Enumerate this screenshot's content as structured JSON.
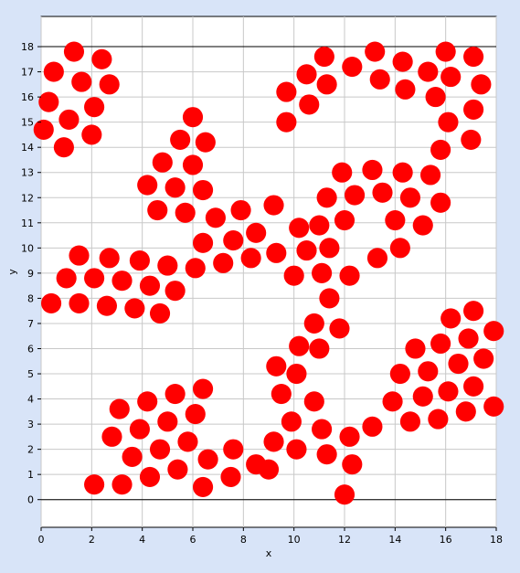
{
  "chart_data": {
    "type": "scatter",
    "title": "",
    "xlabel": "x",
    "ylabel": "y",
    "xlim": [
      0,
      18
    ],
    "ylim": [
      -1.1,
      19.2
    ],
    "xticks": [
      0,
      2,
      4,
      6,
      8,
      10,
      12,
      14,
      16,
      18
    ],
    "yticks": [
      0,
      1,
      2,
      3,
      4,
      5,
      6,
      7,
      8,
      9,
      10,
      11,
      12,
      13,
      14,
      15,
      16,
      17,
      18
    ],
    "grid": true,
    "reference_lines_y": [
      0,
      18
    ],
    "legend": "none",
    "marker_radius": 0.4,
    "marker_color": "#ff0000",
    "series": [
      {
        "points": [
          [
            1.3,
            17.8
          ],
          [
            2.4,
            17.5
          ],
          [
            0.5,
            17.0
          ],
          [
            1.6,
            16.6
          ],
          [
            2.7,
            16.5
          ],
          [
            0.3,
            15.8
          ],
          [
            2.1,
            15.6
          ],
          [
            1.1,
            15.1
          ],
          [
            0.1,
            14.7
          ],
          [
            2.0,
            14.5
          ],
          [
            0.9,
            14.0
          ],
          [
            9.7,
            16.2
          ],
          [
            10.5,
            16.9
          ],
          [
            11.2,
            17.6
          ],
          [
            12.3,
            17.2
          ],
          [
            13.2,
            17.8
          ],
          [
            11.3,
            16.5
          ],
          [
            10.6,
            15.7
          ],
          [
            9.7,
            15.0
          ],
          [
            13.4,
            16.7
          ],
          [
            14.3,
            17.4
          ],
          [
            14.4,
            16.3
          ],
          [
            15.3,
            17.0
          ],
          [
            15.6,
            16.0
          ],
          [
            16.0,
            17.8
          ],
          [
            16.2,
            16.8
          ],
          [
            17.1,
            17.6
          ],
          [
            17.4,
            16.5
          ],
          [
            16.1,
            15.0
          ],
          [
            17.1,
            15.5
          ],
          [
            15.8,
            13.9
          ],
          [
            17.0,
            14.3
          ],
          [
            6.0,
            15.2
          ],
          [
            5.5,
            14.3
          ],
          [
            6.5,
            14.2
          ],
          [
            4.8,
            13.4
          ],
          [
            6.0,
            13.3
          ],
          [
            4.2,
            12.5
          ],
          [
            5.3,
            12.4
          ],
          [
            6.4,
            12.3
          ],
          [
            4.6,
            11.5
          ],
          [
            5.7,
            11.4
          ],
          [
            6.9,
            11.2
          ],
          [
            6.4,
            10.2
          ],
          [
            7.6,
            10.3
          ],
          [
            7.9,
            11.5
          ],
          [
            8.5,
            10.6
          ],
          [
            9.2,
            11.7
          ],
          [
            6.1,
            9.2
          ],
          [
            7.2,
            9.4
          ],
          [
            8.3,
            9.6
          ],
          [
            9.3,
            9.8
          ],
          [
            10.2,
            10.8
          ],
          [
            10.5,
            9.9
          ],
          [
            11.0,
            10.9
          ],
          [
            11.4,
            10.0
          ],
          [
            11.1,
            9.0
          ],
          [
            12.0,
            11.1
          ],
          [
            12.2,
            8.9
          ],
          [
            11.4,
            8.0
          ],
          [
            10.0,
            8.9
          ],
          [
            11.3,
            12.0
          ],
          [
            11.9,
            13.0
          ],
          [
            12.4,
            12.1
          ],
          [
            13.1,
            13.1
          ],
          [
            13.5,
            12.2
          ],
          [
            14.3,
            13.0
          ],
          [
            14.0,
            11.1
          ],
          [
            14.6,
            12.0
          ],
          [
            15.1,
            10.9
          ],
          [
            15.4,
            12.9
          ],
          [
            15.8,
            11.8
          ],
          [
            14.2,
            10.0
          ],
          [
            13.3,
            9.6
          ],
          [
            0.4,
            7.8
          ],
          [
            1.0,
            8.8
          ],
          [
            1.5,
            9.7
          ],
          [
            1.5,
            7.8
          ],
          [
            2.1,
            8.8
          ],
          [
            2.6,
            7.7
          ],
          [
            2.7,
            9.6
          ],
          [
            3.2,
            8.7
          ],
          [
            3.7,
            7.6
          ],
          [
            3.9,
            9.5
          ],
          [
            4.3,
            8.5
          ],
          [
            4.7,
            7.4
          ],
          [
            5.0,
            9.3
          ],
          [
            5.3,
            8.3
          ],
          [
            11.8,
            6.8
          ],
          [
            11.0,
            6.0
          ],
          [
            10.8,
            7.0
          ],
          [
            10.2,
            6.1
          ],
          [
            9.3,
            5.3
          ],
          [
            10.1,
            5.0
          ],
          [
            9.5,
            4.2
          ],
          [
            10.8,
            3.9
          ],
          [
            9.9,
            3.1
          ],
          [
            11.1,
            2.8
          ],
          [
            10.1,
            2.0
          ],
          [
            9.2,
            2.3
          ],
          [
            9.0,
            1.2
          ],
          [
            11.3,
            1.8
          ],
          [
            12.2,
            2.5
          ],
          [
            12.3,
            1.4
          ],
          [
            12.0,
            0.2
          ],
          [
            3.1,
            3.6
          ],
          [
            4.2,
            3.9
          ],
          [
            5.3,
            4.2
          ],
          [
            6.4,
            4.4
          ],
          [
            2.8,
            2.5
          ],
          [
            3.9,
            2.8
          ],
          [
            5.0,
            3.1
          ],
          [
            6.1,
            3.4
          ],
          [
            3.6,
            1.7
          ],
          [
            4.7,
            2.0
          ],
          [
            5.8,
            2.3
          ],
          [
            6.6,
            1.6
          ],
          [
            7.6,
            2.0
          ],
          [
            2.1,
            0.6
          ],
          [
            3.2,
            0.6
          ],
          [
            4.3,
            0.9
          ],
          [
            5.4,
            1.2
          ],
          [
            6.4,
            0.5
          ],
          [
            7.5,
            0.9
          ],
          [
            8.5,
            1.4
          ],
          [
            13.1,
            2.9
          ],
          [
            13.9,
            3.9
          ],
          [
            14.2,
            5.0
          ],
          [
            14.6,
            3.1
          ],
          [
            14.8,
            6.0
          ],
          [
            15.1,
            4.1
          ],
          [
            15.3,
            5.1
          ],
          [
            15.8,
            6.2
          ],
          [
            15.7,
            3.2
          ],
          [
            16.1,
            4.3
          ],
          [
            16.2,
            7.2
          ],
          [
            16.5,
            5.4
          ],
          [
            16.9,
            6.4
          ],
          [
            16.8,
            3.5
          ],
          [
            17.1,
            7.5
          ],
          [
            17.1,
            4.5
          ],
          [
            17.5,
            5.6
          ],
          [
            17.9,
            6.7
          ],
          [
            17.9,
            3.7
          ]
        ]
      }
    ]
  }
}
